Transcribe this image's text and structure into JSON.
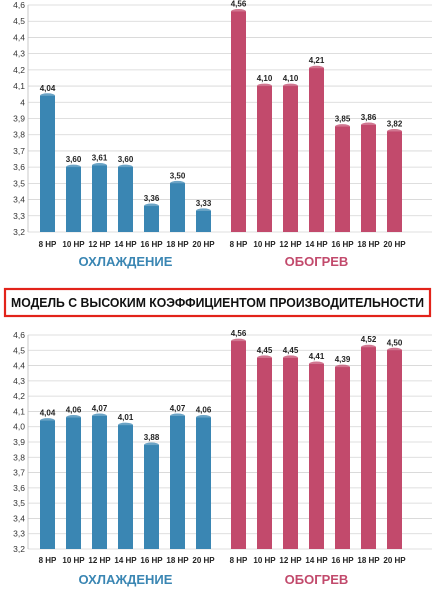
{
  "banner": {
    "text": "МОДЕЛЬ С ВЫСОКИМ КОЭФФИЦИЕНТОМ ПРОИЗВОДИТЕЛЬНОСТИ",
    "border_color": "#e2231a"
  },
  "colors": {
    "cooling": "#3a86b3",
    "heating": "#c24a6c"
  },
  "chart_data": [
    {
      "type": "bar",
      "ylim": [
        3.2,
        4.6
      ],
      "yticks": [
        "3,2",
        "3,3",
        "3,4",
        "3,5",
        "3,6",
        "3,7",
        "3,8",
        "3,9",
        "4",
        "4,1",
        "4,2",
        "4,3",
        "4,4",
        "4,5",
        "4,6"
      ],
      "grid": true,
      "groups": [
        {
          "name": "ОХЛАЖДЕНИЕ",
          "categories": [
            "8 HP",
            "10 HP",
            "12 HP",
            "14 HP",
            "16 HP",
            "18 HP",
            "20 HP"
          ],
          "values": [
            4.04,
            3.6,
            3.61,
            3.6,
            3.36,
            3.5,
            3.33
          ],
          "labels": [
            "4,04",
            "3,60",
            "3,61",
            "3,60",
            "3,36",
            "3,50",
            "3,33"
          ]
        },
        {
          "name": "ОБОГРЕВ",
          "categories": [
            "8 HP",
            "10 HP",
            "12 HP",
            "14 HP",
            "16 HP",
            "18 HP",
            "20 HP"
          ],
          "values": [
            4.56,
            4.1,
            4.1,
            4.21,
            3.85,
            3.86,
            3.82
          ],
          "labels": [
            "4,56",
            "4,10",
            "4,10",
            "4,21",
            "3,85",
            "3,86",
            "3,82"
          ]
        }
      ]
    },
    {
      "type": "bar",
      "ylim": [
        3.2,
        4.6
      ],
      "yticks": [
        "3,2",
        "3,3",
        "3,4",
        "3,5",
        "3,6",
        "3,7",
        "3,8",
        "3,9",
        "4,0",
        "4,1",
        "4,2",
        "4,3",
        "4,4",
        "4,5",
        "4,6"
      ],
      "grid": true,
      "groups": [
        {
          "name": "ОХЛАЖДЕНИЕ",
          "categories": [
            "8 HP",
            "10 HP",
            "12 HP",
            "14 HP",
            "16 HP",
            "18 HP",
            "20 HP"
          ],
          "values": [
            4.04,
            4.06,
            4.07,
            4.01,
            3.88,
            4.07,
            4.06
          ],
          "labels": [
            "4,04",
            "4,06",
            "4,07",
            "4,01",
            "3,88",
            "4,07",
            "4,06"
          ]
        },
        {
          "name": "ОБОГРЕВ",
          "categories": [
            "8 HP",
            "10 HP",
            "12 HP",
            "14 HP",
            "16 HP",
            "18 HP",
            "20 HP"
          ],
          "values": [
            4.56,
            4.45,
            4.45,
            4.41,
            4.39,
            4.52,
            4.5
          ],
          "labels": [
            "4,56",
            "4,45",
            "4,45",
            "4,41",
            "4,39",
            "4,52",
            "4,50"
          ]
        }
      ]
    }
  ]
}
